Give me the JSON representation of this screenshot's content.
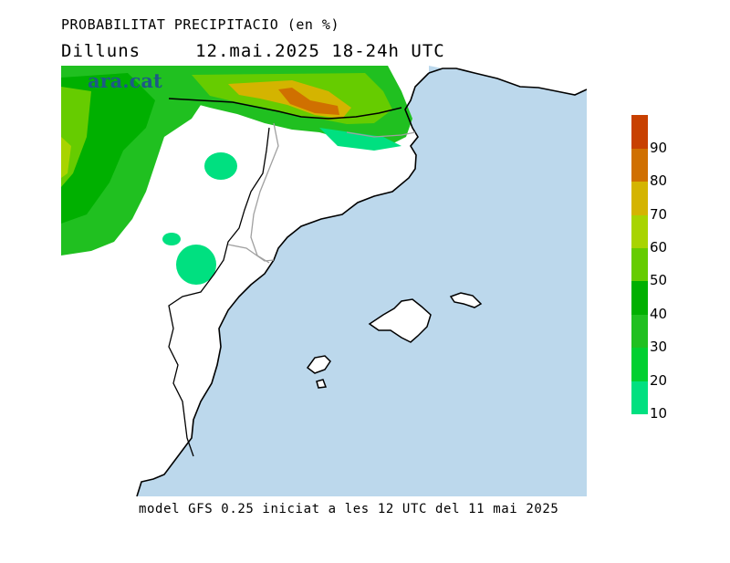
{
  "header": {
    "title": "PROBABILITAT PRECIPITACIO (en %)",
    "day": "Dilluns",
    "datetime": "12.mai.2025 18-24h UTC"
  },
  "logo": {
    "text": "ara.cat"
  },
  "footer": {
    "text": "model GFS 0.25 iniciat a les 12 UTC del 11 mai 2025"
  },
  "legend": {
    "levels": [
      {
        "label": "10",
        "color": "#00e080"
      },
      {
        "label": "20",
        "color": "#00d030"
      },
      {
        "label": "30",
        "color": "#20c020"
      },
      {
        "label": "40",
        "color": "#00b000"
      },
      {
        "label": "50",
        "color": "#66cc00"
      },
      {
        "label": "60",
        "color": "#a8d400"
      },
      {
        "label": "70",
        "color": "#d4b400"
      },
      {
        "label": "80",
        "color": "#d07000"
      },
      {
        "label": "90",
        "color": "#c84000"
      }
    ],
    "top_color": "#c00000"
  },
  "colors": {
    "sea": "#bcd8ec",
    "land": "#ffffff",
    "coast": "#000000",
    "border": "#a0a0a0"
  }
}
